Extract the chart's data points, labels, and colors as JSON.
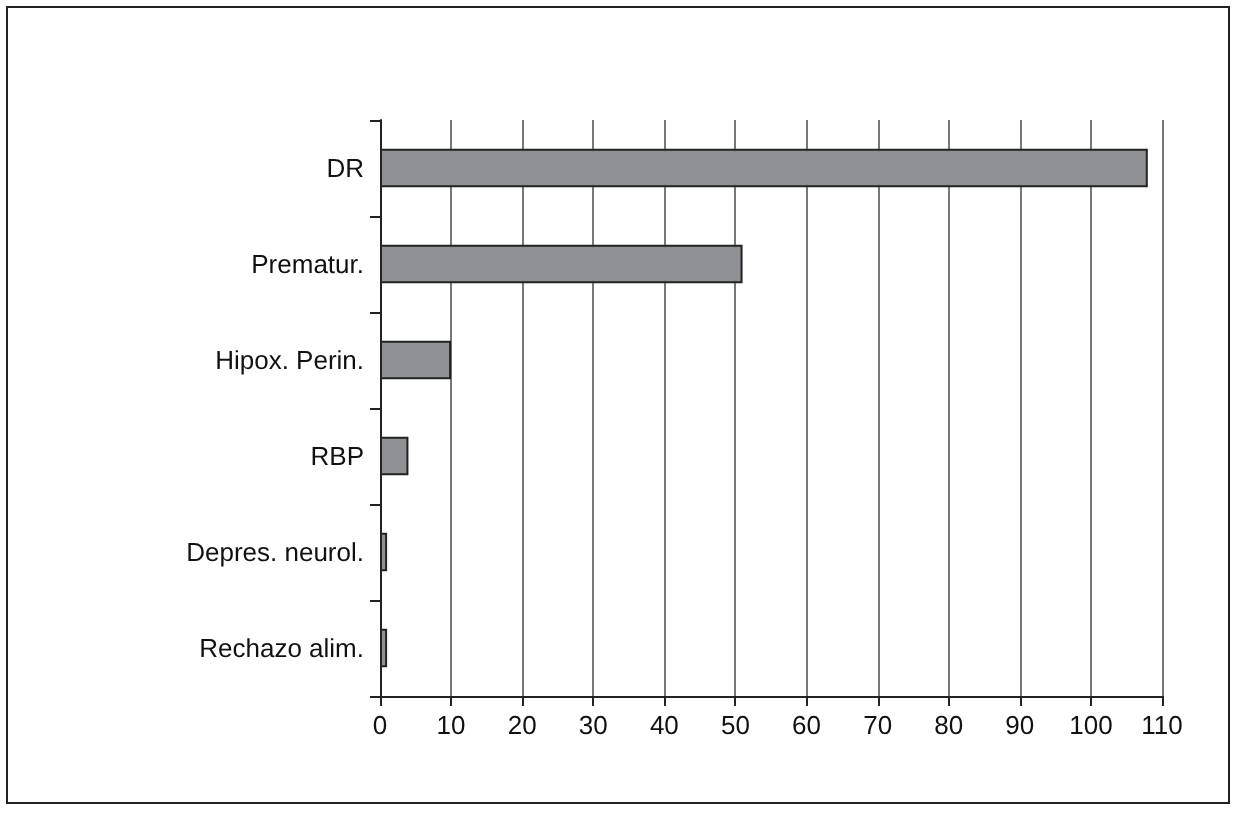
{
  "chart_data": {
    "type": "bar",
    "orientation": "horizontal",
    "categories": [
      "DR",
      "Prematur.",
      "Hipox. Perin.",
      "RBP",
      "Depres. neurol.",
      "Rechazo alim."
    ],
    "values": [
      108,
      51,
      10,
      4,
      1,
      1
    ],
    "color": "#8f9094",
    "xlim": [
      0,
      110
    ],
    "xticks": [
      0,
      10,
      20,
      30,
      40,
      50,
      60,
      70,
      80,
      90,
      100,
      110
    ],
    "grid": "x"
  }
}
